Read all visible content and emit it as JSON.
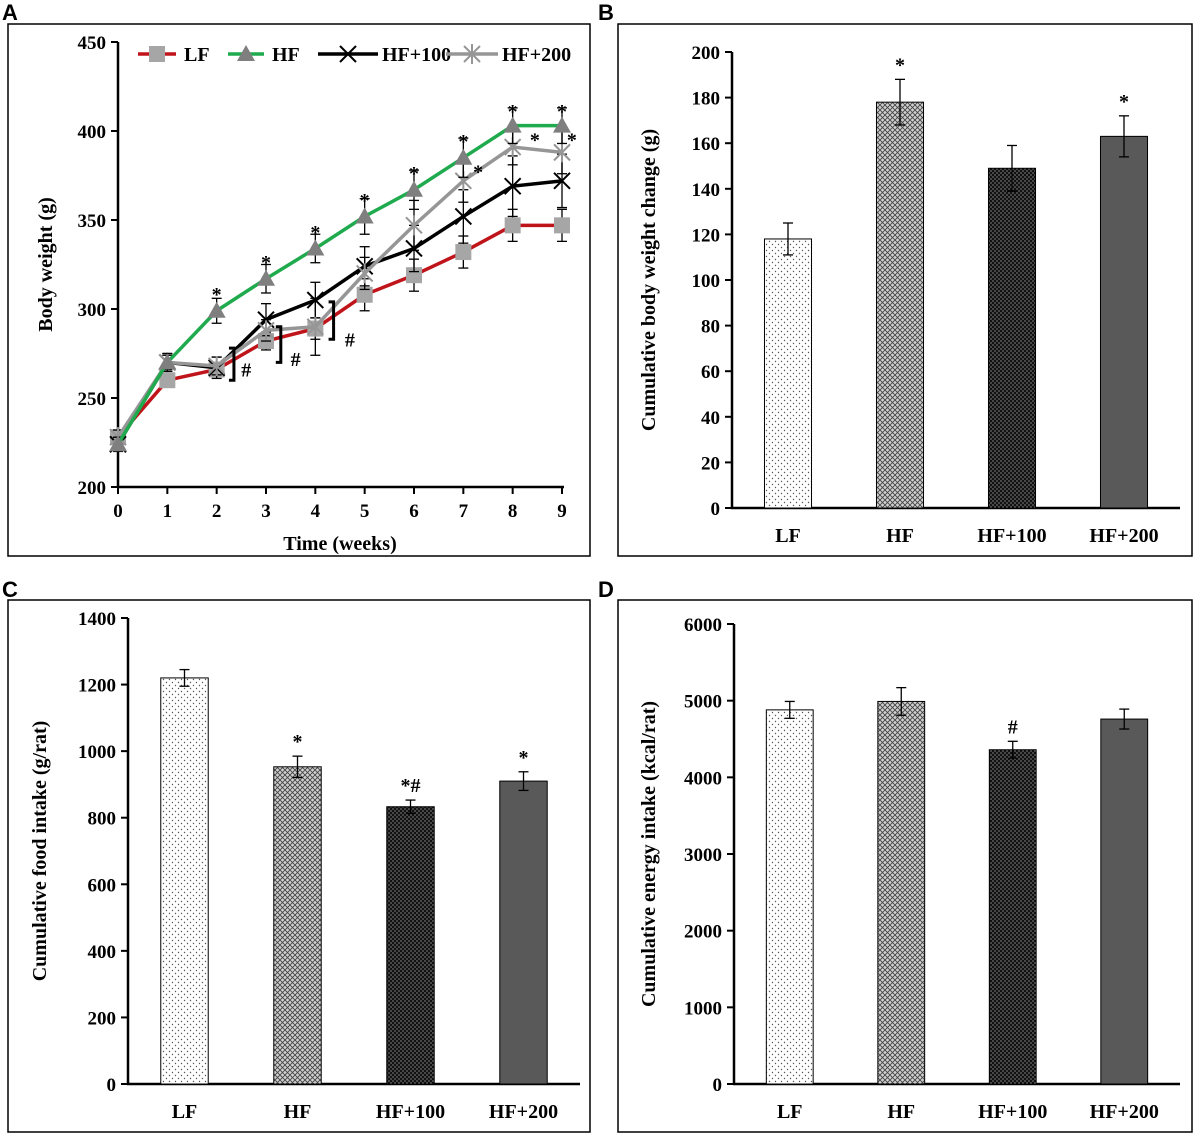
{
  "colors": {
    "LF_line": "#c0141b",
    "LF_marker": "#a6a6a6",
    "HF_line": "#1faa4e",
    "HF_marker": "#7f7f7f",
    "HF100": "#000000",
    "HF200": "#969696",
    "bar_HF200": "#595959"
  },
  "chart_data": [
    {
      "panel": "A",
      "type": "line",
      "xlabel": "Time (weeks)",
      "ylabel": "Body weight (g)",
      "x": [
        0,
        1,
        2,
        3,
        4,
        5,
        6,
        7,
        8,
        9
      ],
      "xlim": [
        0,
        9
      ],
      "ylim": [
        200,
        450
      ],
      "yticks": [
        200,
        250,
        300,
        350,
        400,
        450
      ],
      "legend_position": "top",
      "series": [
        {
          "name": "LF",
          "marker": "square",
          "values": [
            228,
            260,
            266,
            282,
            289,
            308,
            319,
            332,
            347,
            347
          ],
          "err": [
            4,
            4,
            4,
            5,
            6,
            9,
            9,
            9,
            9,
            9
          ]
        },
        {
          "name": "HF",
          "marker": "triangle",
          "values": [
            224,
            270,
            299,
            317,
            334,
            352,
            367,
            385,
            403,
            403
          ],
          "err": [
            4,
            5,
            7,
            8,
            8,
            10,
            11,
            11,
            10,
            10
          ]
        },
        {
          "name": "HF+100",
          "marker": "x",
          "values": [
            224,
            270,
            267,
            294,
            305,
            324,
            334,
            352,
            369,
            372
          ],
          "err": [
            4,
            5,
            6,
            9,
            10,
            11,
            13,
            15,
            17,
            15
          ]
        },
        {
          "name": "HF+200",
          "marker": "asterisk",
          "values": [
            228,
            270,
            268,
            288,
            290,
            320,
            347,
            372,
            391,
            388
          ],
          "err": [
            4,
            4,
            5,
            6,
            16,
            9,
            14,
            12,
            10,
            12
          ]
        }
      ],
      "annotations": [
        {
          "text": "*",
          "x": 2,
          "y": 310
        },
        {
          "text": "*",
          "x": 3,
          "y": 328
        },
        {
          "text": "*",
          "x": 4,
          "y": 345
        },
        {
          "text": "*",
          "x": 5,
          "y": 363
        },
        {
          "text": "*",
          "x": 6,
          "y": 378
        },
        {
          "text": "*",
          "x": 7,
          "y": 396
        },
        {
          "text": "*",
          "x": 8,
          "y": 413
        },
        {
          "text": "*",
          "x": 9,
          "y": 413
        },
        {
          "text": "*",
          "x": 7.3,
          "y": 379
        },
        {
          "text": "*",
          "x": 8.45,
          "y": 397
        },
        {
          "text": "*",
          "x": 9.2,
          "y": 397
        },
        {
          "text": "#",
          "x": 2.6,
          "y": 266
        },
        {
          "text": "#",
          "x": 3.6,
          "y": 272
        },
        {
          "text": "#",
          "x": 4.7,
          "y": 283
        }
      ],
      "brackets": [
        {
          "x": 2.35,
          "y1": 260,
          "y2": 278
        },
        {
          "x": 3.3,
          "y1": 270,
          "y2": 290
        },
        {
          "x": 4.37,
          "y1": 283,
          "y2": 304
        }
      ]
    },
    {
      "panel": "B",
      "type": "bar",
      "categories": [
        "LF",
        "HF",
        "HF+100",
        "HF+200"
      ],
      "values": [
        118,
        178,
        149,
        163
      ],
      "err": [
        7,
        10,
        10,
        9
      ],
      "sig": [
        "",
        "*",
        "",
        "*"
      ],
      "ylabel": "Cumulative body weight change (g)",
      "ylim": [
        0,
        200
      ],
      "yticks": [
        0,
        20,
        40,
        60,
        80,
        100,
        120,
        140,
        160,
        180,
        200
      ]
    },
    {
      "panel": "C",
      "type": "bar",
      "categories": [
        "LF",
        "HF",
        "HF+100",
        "HF+200"
      ],
      "values": [
        1220,
        953,
        833,
        910
      ],
      "err": [
        25,
        32,
        20,
        28
      ],
      "sig": [
        "",
        "*",
        "*#",
        "*"
      ],
      "ylabel": "Cumulative food intake (g/rat)",
      "ylim": [
        0,
        1400
      ],
      "yticks": [
        0,
        200,
        400,
        600,
        800,
        1000,
        1200,
        1400
      ]
    },
    {
      "panel": "D",
      "type": "bar",
      "categories": [
        "LF",
        "HF",
        "HF+100",
        "HF+200"
      ],
      "values": [
        4880,
        4990,
        4360,
        4760
      ],
      "err": [
        110,
        180,
        110,
        130
      ],
      "sig": [
        "",
        "",
        "#",
        ""
      ],
      "ylabel": "Cumulative energy intake (kcal/rat)",
      "ylim": [
        0,
        6000
      ],
      "yticks": [
        0,
        1000,
        2000,
        3000,
        4000,
        5000,
        6000
      ]
    }
  ]
}
